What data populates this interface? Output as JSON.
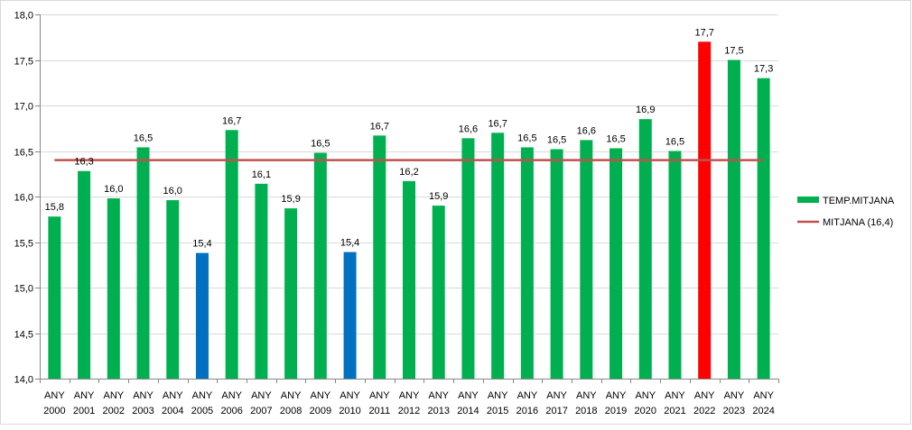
{
  "chart_data": {
    "type": "bar",
    "title": "",
    "xlabel": "",
    "ylabel": "",
    "ylim": [
      14.0,
      18.0
    ],
    "y_ticks": [
      "14,0",
      "14,5",
      "15,0",
      "15,5",
      "16,0",
      "16,5",
      "17,0",
      "17,5",
      "18,0"
    ],
    "grid": "horizontal",
    "legend_position": "right",
    "categories": [
      [
        "ANY",
        "2000"
      ],
      [
        "ANY",
        "2001"
      ],
      [
        "ANY",
        "2002"
      ],
      [
        "ANY",
        "2003"
      ],
      [
        "ANY",
        "2004"
      ],
      [
        "ANY",
        "2005"
      ],
      [
        "ANY",
        "2006"
      ],
      [
        "ANY",
        "2007"
      ],
      [
        "ANY",
        "2008"
      ],
      [
        "ANY",
        "2009"
      ],
      [
        "ANY",
        "2010"
      ],
      [
        "ANY",
        "2011"
      ],
      [
        "ANY",
        "2012"
      ],
      [
        "ANY",
        "2013"
      ],
      [
        "ANY",
        "2014"
      ],
      [
        "ANY",
        "2015"
      ],
      [
        "ANY",
        "2016"
      ],
      [
        "ANY",
        "2017"
      ],
      [
        "ANY",
        "2018"
      ],
      [
        "ANY",
        "2019"
      ],
      [
        "ANY",
        "2020"
      ],
      [
        "ANY",
        "2021"
      ],
      [
        "ANY",
        "2022"
      ],
      [
        "ANY",
        "2023"
      ],
      [
        "ANY",
        "2024"
      ]
    ],
    "series": [
      {
        "name": "TEMP.MITJANA",
        "kind": "bar",
        "color": "#00b050",
        "values": [
          15.78,
          16.28,
          15.98,
          16.54,
          15.96,
          15.38,
          16.73,
          16.14,
          15.87,
          16.48,
          15.39,
          16.67,
          16.17,
          15.9,
          16.64,
          16.7,
          16.54,
          16.52,
          16.62,
          16.53,
          16.85,
          16.5,
          17.7,
          17.5,
          17.3
        ],
        "labels": [
          "15,8",
          "16,3",
          "16,0",
          "16,5",
          "16,0",
          "15,4",
          "16,7",
          "16,1",
          "15,9",
          "16,5",
          "15,4",
          "16,7",
          "16,2",
          "15,9",
          "16,6",
          "16,7",
          "16,5",
          "16,5",
          "16,6",
          "16,5",
          "16,9",
          "16,5",
          "17,7",
          "17,5",
          "17,3"
        ],
        "point_colors": {
          "5": "#0070c0",
          "10": "#0070c0",
          "22": "#ff0000"
        }
      },
      {
        "name": "MITJANA (16,4)",
        "kind": "line",
        "color": "#c0504d",
        "value": 16.4
      }
    ]
  }
}
